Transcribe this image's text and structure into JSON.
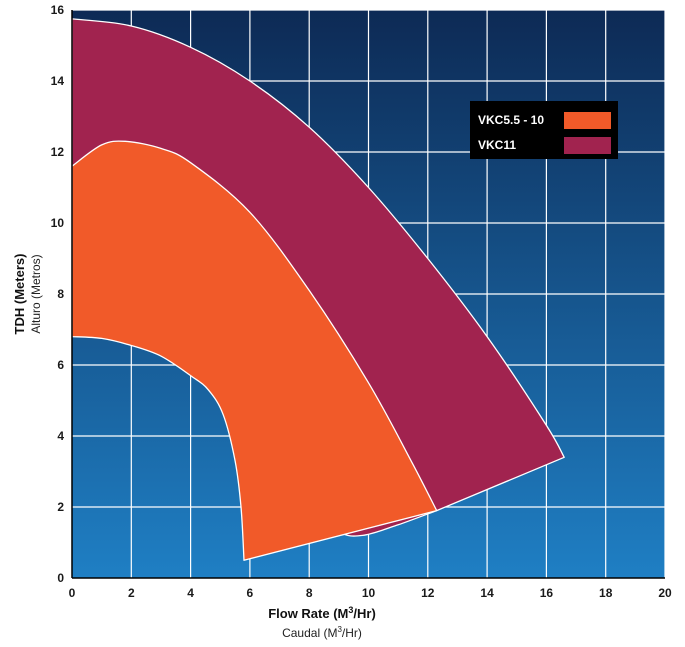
{
  "colors": {
    "bg_top": "#0d2a55",
    "bg_bottom": "#1f7fc4",
    "grid": "#ffffff",
    "vkc11": "#a1234f",
    "vkc55": "#f15a29",
    "band_outline": "#ffffff"
  },
  "chart_data": {
    "type": "area",
    "xlim": [
      0,
      20
    ],
    "ylim": [
      0,
      16
    ],
    "x_ticks": [
      0,
      2,
      4,
      6,
      8,
      10,
      12,
      14,
      16,
      18,
      20
    ],
    "y_ticks": [
      0,
      2,
      4,
      6,
      8,
      10,
      12,
      14,
      16
    ],
    "grid": true,
    "legend_position": "top-right",
    "xlabel": {
      "main_prefix": "Flow Rate (M",
      "sup": "3",
      "main_suffix": "/Hr)",
      "sub_prefix": "Caudal (M",
      "sub_sup": "3",
      "sub_suffix": "/Hr)"
    },
    "ylabel": {
      "main": "TDH (Meters)",
      "sub": "Alturo (Metros)"
    },
    "series": [
      {
        "name": "VKC11",
        "color": "#a1234f",
        "upper": [
          [
            0,
            15.75
          ],
          [
            2,
            15.55
          ],
          [
            4,
            14.95
          ],
          [
            6,
            14.0
          ],
          [
            8,
            12.7
          ],
          [
            10,
            11.0
          ],
          [
            12,
            9.0
          ],
          [
            14,
            6.8
          ],
          [
            16,
            4.3
          ],
          [
            16.6,
            3.4
          ]
        ],
        "lower": [
          [
            0,
            7.7
          ],
          [
            1,
            7.6
          ],
          [
            2,
            7.35
          ],
          [
            3,
            7.0
          ],
          [
            4,
            6.4
          ],
          [
            5,
            5.6
          ],
          [
            6,
            4.4
          ],
          [
            7,
            3.1
          ],
          [
            8,
            2.0
          ],
          [
            9,
            1.3
          ],
          [
            9.8,
            1.2
          ],
          [
            11,
            1.5
          ],
          [
            12.3,
            1.9
          ]
        ]
      },
      {
        "name": "VKC5.5 - 10",
        "color": "#f15a29",
        "upper": [
          [
            0,
            11.6
          ],
          [
            1,
            12.2
          ],
          [
            1.8,
            12.3
          ],
          [
            3,
            12.1
          ],
          [
            4,
            11.7
          ],
          [
            6,
            10.3
          ],
          [
            8,
            8.1
          ],
          [
            10,
            5.5
          ],
          [
            11.5,
            3.2
          ],
          [
            12.3,
            1.9
          ]
        ],
        "lower": [
          [
            0,
            6.8
          ],
          [
            1,
            6.75
          ],
          [
            2,
            6.55
          ],
          [
            3,
            6.25
          ],
          [
            4,
            5.7
          ],
          [
            4.6,
            5.3
          ],
          [
            5.1,
            4.6
          ],
          [
            5.5,
            3.3
          ],
          [
            5.7,
            2.0
          ],
          [
            5.8,
            0.5
          ]
        ]
      }
    ]
  }
}
